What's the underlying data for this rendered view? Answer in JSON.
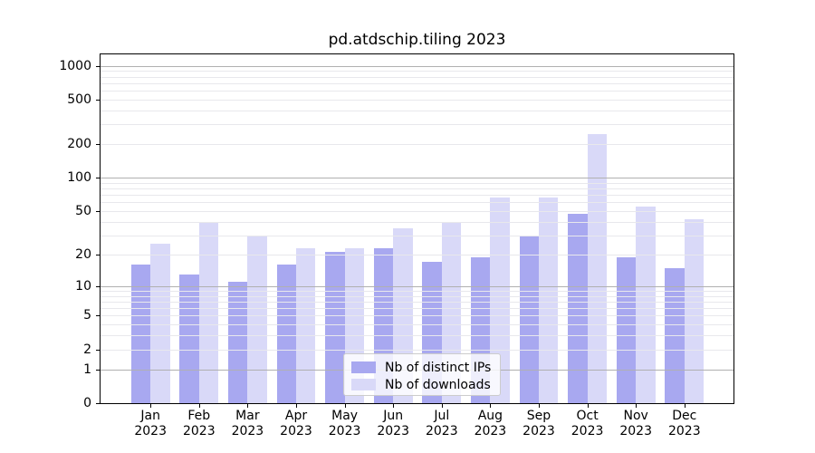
{
  "chart_data": {
    "type": "bar",
    "title": "pd.atdschip.tiling 2023",
    "year_label": "2023",
    "categories": [
      "Jan",
      "Feb",
      "Mar",
      "Apr",
      "May",
      "Jun",
      "Jul",
      "Aug",
      "Sep",
      "Oct",
      "Nov",
      "Dec"
    ],
    "series": [
      {
        "name": "Nb of distinct IPs",
        "color": "#a8a8f0",
        "values": [
          16,
          13,
          11,
          16,
          21,
          23,
          17,
          19,
          30,
          47,
          19,
          15
        ]
      },
      {
        "name": "Nb of downloads",
        "color": "#d9d9f8",
        "values": [
          25,
          40,
          30,
          23,
          23,
          35,
          40,
          66,
          67,
          245,
          55,
          42
        ]
      }
    ],
    "yscale": "log10(1+x)",
    "yticks": [
      0,
      1,
      2,
      5,
      10,
      20,
      50,
      100,
      200,
      500,
      1000
    ],
    "ylim": [
      0,
      1265
    ],
    "grid": "major and minor horizontal, drawn above bars",
    "legend_position": "lower center",
    "colors": {
      "axis": "#000000",
      "grid_major": "#b0b0b0",
      "grid_minor": "#e8e8ec",
      "text": "#000000",
      "background": "#ffffff"
    }
  }
}
